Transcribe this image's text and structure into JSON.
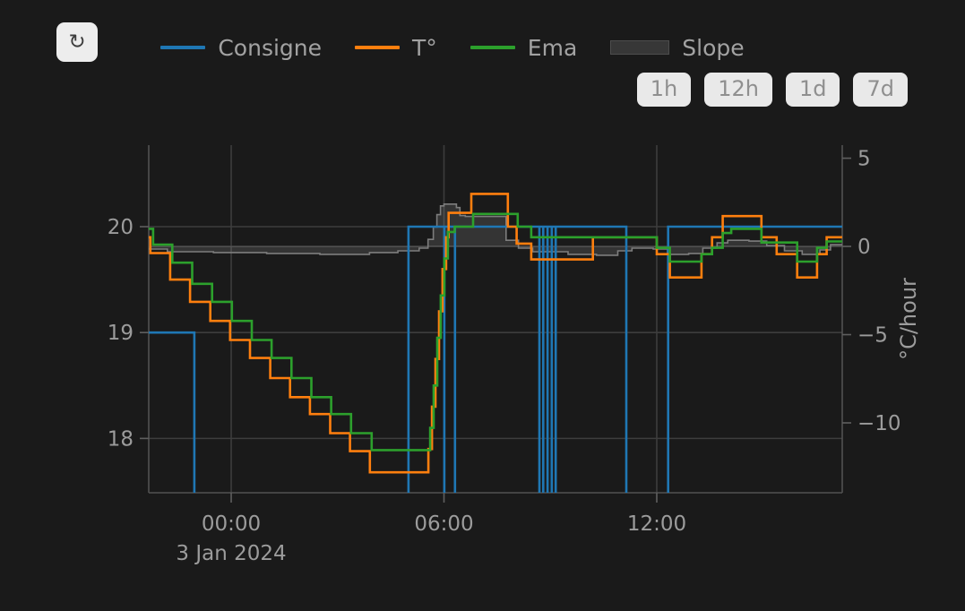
{
  "toolbar": {
    "refresh_icon": "↻"
  },
  "legend": {
    "items": [
      {
        "label": "Consigne",
        "type": "line",
        "swatch_color": "#1f77b4"
      },
      {
        "label": "T°",
        "type": "line",
        "swatch_color": "#ff7f0e"
      },
      {
        "label": "Ema",
        "type": "line",
        "swatch_color": "#2ca02c"
      },
      {
        "label": "Slope",
        "type": "area",
        "swatch_color": "#373737"
      }
    ]
  },
  "range_buttons": [
    {
      "label": "1h"
    },
    {
      "label": "12h"
    },
    {
      "label": "1d"
    },
    {
      "label": "7d"
    }
  ],
  "chart_data": {
    "type": "line",
    "x_unit": "hours relative to 2024-01-03 00:00",
    "x_range": [
      -2.325,
      17.23
    ],
    "x_ticks": [
      {
        "t": 0,
        "label": "00:00"
      },
      {
        "t": 6,
        "label": "06:00"
      },
      {
        "t": 12,
        "label": "12:00"
      }
    ],
    "x_date_label": "3 Jan 2024",
    "y_left": {
      "range": [
        17.487,
        20.77
      ],
      "ticks": [
        {
          "v": 20,
          "label": "20"
        },
        {
          "v": 19,
          "label": "19"
        },
        {
          "v": 18,
          "label": "18"
        }
      ]
    },
    "y_right": {
      "range": [
        -13.96,
        5.74
      ],
      "title": "°C/hour",
      "ticks": [
        {
          "v": 5,
          "label": "5"
        },
        {
          "v": 0,
          "label": "0"
        },
        {
          "v": -5,
          "label": "−5"
        },
        {
          "v": -10,
          "label": "−10"
        }
      ]
    },
    "colors": {
      "grid": "#3d3d3d",
      "zeroline": "#484848",
      "axis_line": "#525252",
      "tick": "#5f5f5f",
      "tick_label": "#9c9c9c",
      "background": "#1a1a1a"
    },
    "series": [
      {
        "name": "Slope",
        "axis": "right",
        "area": true,
        "color": "#7d7d7d",
        "fill_color": "rgba(145,145,145,0.22)",
        "width": 1.6,
        "points": [
          [
            -2.33,
            -0.15
          ],
          [
            -1.8,
            -0.3
          ],
          [
            -0.5,
            -0.35
          ],
          [
            1.0,
            -0.4
          ],
          [
            2.5,
            -0.45
          ],
          [
            3.9,
            -0.35
          ],
          [
            4.7,
            -0.25
          ],
          [
            5.3,
            -0.1
          ],
          [
            5.55,
            0.4
          ],
          [
            5.7,
            1.1
          ],
          [
            5.8,
            1.8
          ],
          [
            5.9,
            2.3
          ],
          [
            6.0,
            2.4
          ],
          [
            6.35,
            2.2
          ],
          [
            6.45,
            1.75
          ],
          [
            6.6,
            1.7
          ],
          [
            7.75,
            0.35
          ],
          [
            8.1,
            -0.1
          ],
          [
            8.5,
            -0.3
          ],
          [
            9.5,
            -0.45
          ],
          [
            10.3,
            -0.5
          ],
          [
            10.9,
            -0.25
          ],
          [
            11.3,
            -0.1
          ],
          [
            11.9,
            -0.15
          ],
          [
            12.3,
            -0.45
          ],
          [
            12.9,
            -0.4
          ],
          [
            13.3,
            -0.1
          ],
          [
            13.7,
            0.2
          ],
          [
            14.0,
            0.35
          ],
          [
            14.6,
            0.3
          ],
          [
            15.1,
            0.05
          ],
          [
            15.6,
            -0.25
          ],
          [
            16.1,
            -0.45
          ],
          [
            16.6,
            -0.2
          ],
          [
            16.9,
            0.1
          ]
        ]
      },
      {
        "name": "Consigne",
        "axis": "left",
        "area": false,
        "color": "#1f77b4",
        "width": 2.6,
        "points": [
          [
            -2.33,
            19
          ],
          [
            -1.04,
            16.8
          ],
          [
            5.0,
            20
          ],
          [
            6.01,
            16.8
          ],
          [
            6.01,
            20
          ],
          [
            6.31,
            16.8
          ],
          [
            6.31,
            20
          ],
          [
            8.69,
            16.8
          ],
          [
            8.69,
            20
          ],
          [
            8.8,
            16.8
          ],
          [
            8.8,
            20
          ],
          [
            8.92,
            16.8
          ],
          [
            8.92,
            20
          ],
          [
            9.04,
            16.8
          ],
          [
            9.04,
            20
          ],
          [
            9.15,
            16.8
          ],
          [
            9.15,
            20
          ],
          [
            11.14,
            16.8
          ],
          [
            12.32,
            20
          ]
        ]
      },
      {
        "name": "T°",
        "axis": "left",
        "area": false,
        "color": "#ff7f0e",
        "width": 2.6,
        "points": [
          [
            -2.33,
            19.9
          ],
          [
            -2.28,
            19.75
          ],
          [
            -1.72,
            19.5
          ],
          [
            -1.16,
            19.29
          ],
          [
            -0.59,
            19.11
          ],
          [
            -0.03,
            18.93
          ],
          [
            0.53,
            18.76
          ],
          [
            1.1,
            18.57
          ],
          [
            1.66,
            18.39
          ],
          [
            2.22,
            18.23
          ],
          [
            2.79,
            18.05
          ],
          [
            3.35,
            17.88
          ],
          [
            3.91,
            17.68
          ],
          [
            5.56,
            17.9
          ],
          [
            5.66,
            18.3
          ],
          [
            5.76,
            18.75
          ],
          [
            5.86,
            19.2
          ],
          [
            5.96,
            19.6
          ],
          [
            6.06,
            19.9
          ],
          [
            6.13,
            20.13
          ],
          [
            6.77,
            20.31
          ],
          [
            7.8,
            20.0
          ],
          [
            8.05,
            19.84
          ],
          [
            8.46,
            19.69
          ],
          [
            10.2,
            19.9
          ],
          [
            12.0,
            19.74
          ],
          [
            12.37,
            19.52
          ],
          [
            13.26,
            19.74
          ],
          [
            13.56,
            19.9
          ],
          [
            13.86,
            20.1
          ],
          [
            14.95,
            19.9
          ],
          [
            15.38,
            19.74
          ],
          [
            15.96,
            19.52
          ],
          [
            16.52,
            19.74
          ],
          [
            16.79,
            19.9
          ]
        ]
      },
      {
        "name": "Ema",
        "axis": "left",
        "area": false,
        "color": "#2ca02c",
        "width": 2.6,
        "points": [
          [
            -2.33,
            19.98
          ],
          [
            -2.2,
            19.83
          ],
          [
            -1.66,
            19.66
          ],
          [
            -1.1,
            19.46
          ],
          [
            -0.54,
            19.29
          ],
          [
            0.02,
            19.11
          ],
          [
            0.58,
            18.93
          ],
          [
            1.14,
            18.76
          ],
          [
            1.7,
            18.57
          ],
          [
            2.26,
            18.39
          ],
          [
            2.82,
            18.23
          ],
          [
            3.38,
            18.05
          ],
          [
            3.96,
            17.89
          ],
          [
            5.61,
            18.1
          ],
          [
            5.71,
            18.5
          ],
          [
            5.81,
            18.95
          ],
          [
            5.91,
            19.35
          ],
          [
            6.01,
            19.7
          ],
          [
            6.11,
            19.95
          ],
          [
            6.3,
            20.0
          ],
          [
            6.82,
            20.12
          ],
          [
            8.08,
            20.0
          ],
          [
            8.46,
            19.9
          ],
          [
            12.0,
            19.8
          ],
          [
            12.37,
            19.67
          ],
          [
            13.26,
            19.74
          ],
          [
            13.56,
            19.8
          ],
          [
            13.86,
            19.94
          ],
          [
            14.1,
            19.98
          ],
          [
            14.95,
            19.85
          ],
          [
            15.96,
            19.67
          ],
          [
            16.52,
            19.8
          ],
          [
            16.79,
            19.86
          ]
        ]
      }
    ]
  }
}
